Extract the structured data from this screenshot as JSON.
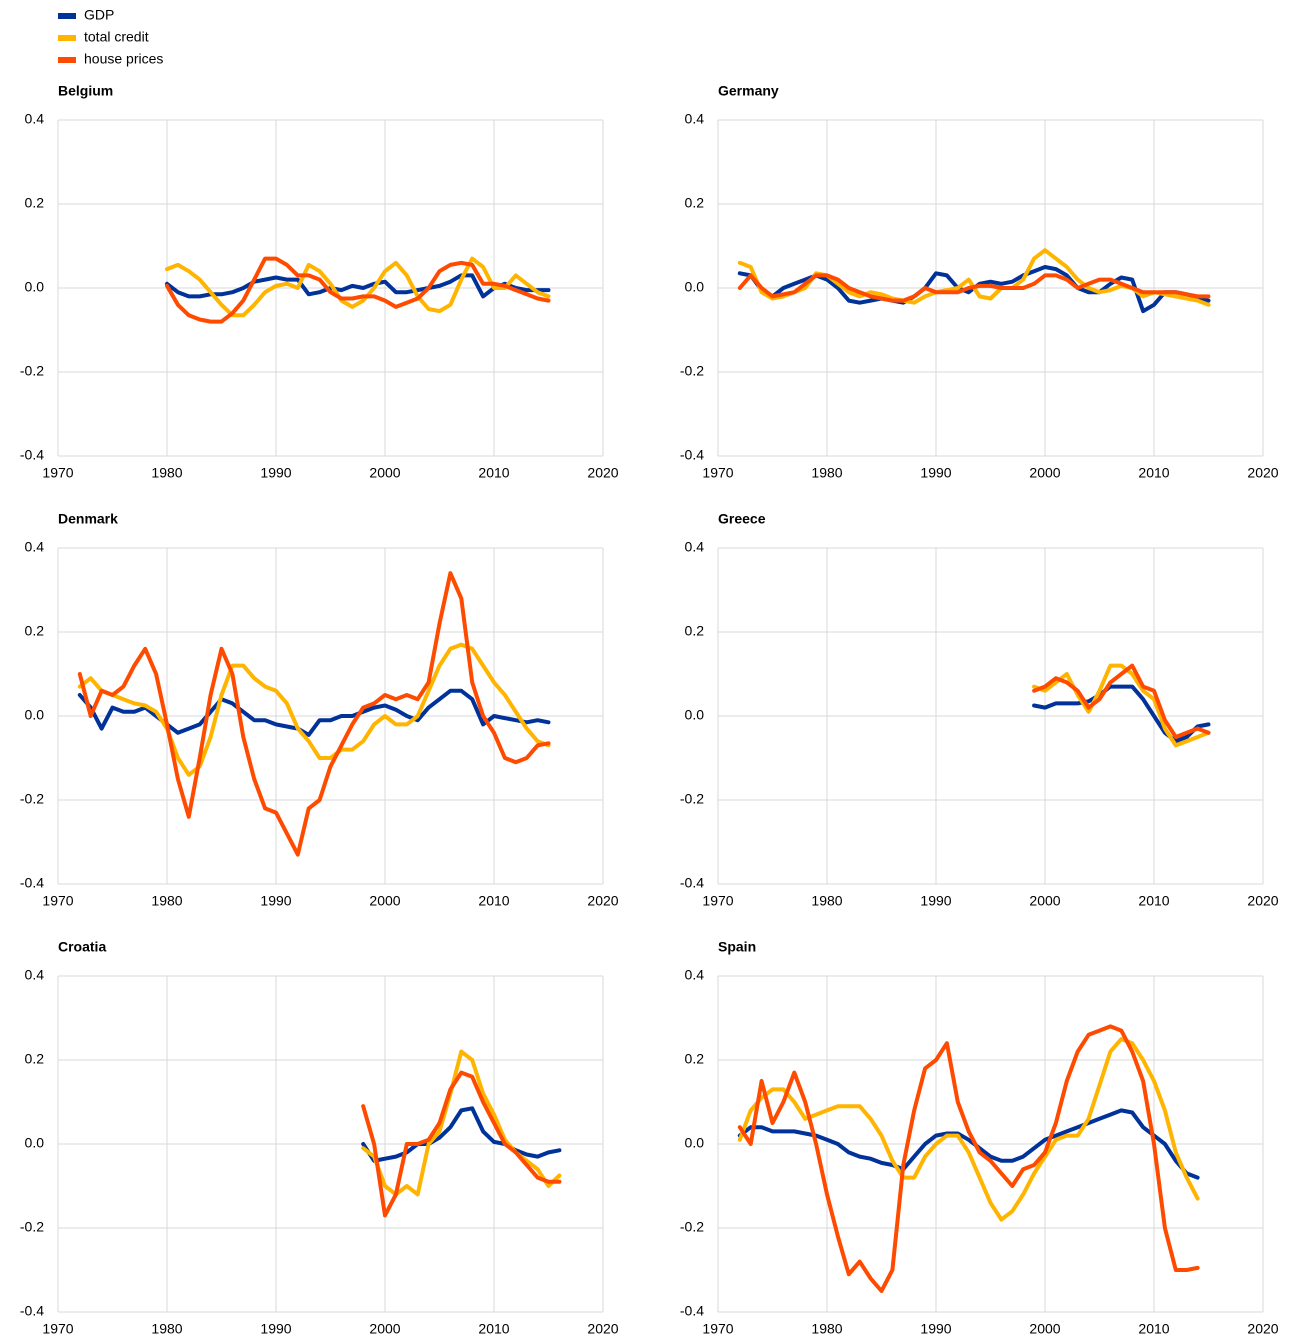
{
  "chart_data": [
    {
      "type": "line",
      "title": "Belgium",
      "xlim": [
        1970,
        2020
      ],
      "xticks": [
        1970,
        1980,
        1990,
        2000,
        2010,
        2020
      ],
      "ylim": [
        -0.4,
        0.4
      ],
      "yticks": [
        -0.4,
        -0.2,
        {
          "value": 0,
          "label": "0.0"
        },
        0.2,
        0.4
      ],
      "grid": true,
      "x": [
        1980,
        1981,
        1982,
        1983,
        1984,
        1985,
        1986,
        1987,
        1988,
        1989,
        1990,
        1991,
        1992,
        1993,
        1994,
        1995,
        1996,
        1997,
        1998,
        1999,
        2000,
        2001,
        2002,
        2003,
        2004,
        2005,
        2006,
        2007,
        2008,
        2009,
        2010,
        2011,
        2012,
        2013,
        2014,
        2015
      ],
      "series": [
        {
          "name": "GDP",
          "color": "#003299",
          "values": [
            0.01,
            -0.01,
            -0.02,
            -0.02,
            -0.015,
            -0.015,
            -0.01,
            0.0,
            0.015,
            0.02,
            0.025,
            0.02,
            0.02,
            -0.015,
            -0.01,
            0.0,
            -0.005,
            0.005,
            0.0,
            0.01,
            0.015,
            -0.01,
            -0.01,
            -0.005,
            0.0,
            0.005,
            0.015,
            0.03,
            0.03,
            -0.02,
            0.0,
            0.01,
            0.0,
            -0.005,
            -0.005,
            -0.005
          ]
        },
        {
          "name": "total credit",
          "color": "#ffb400",
          "values": [
            0.045,
            0.055,
            0.04,
            0.02,
            -0.01,
            -0.04,
            -0.065,
            -0.065,
            -0.04,
            -0.01,
            0.005,
            0.01,
            0.0,
            0.055,
            0.04,
            0.01,
            -0.03,
            -0.045,
            -0.03,
            0.0,
            0.04,
            0.06,
            0.03,
            -0.02,
            -0.05,
            -0.055,
            -0.04,
            0.02,
            0.07,
            0.05,
            0.0,
            0.0,
            0.03,
            0.01,
            -0.01,
            -0.02
          ]
        },
        {
          "name": "house prices",
          "color": "#ff4b00",
          "values": [
            0.005,
            -0.04,
            -0.065,
            -0.075,
            -0.08,
            -0.08,
            -0.06,
            -0.03,
            0.02,
            0.07,
            0.07,
            0.055,
            0.03,
            0.03,
            0.02,
            -0.01,
            -0.025,
            -0.025,
            -0.02,
            -0.02,
            -0.03,
            -0.045,
            -0.035,
            -0.025,
            0.0,
            0.04,
            0.055,
            0.06,
            0.055,
            0.01,
            0.01,
            0.005,
            -0.005,
            -0.015,
            -0.025,
            -0.03
          ]
        }
      ]
    },
    {
      "type": "line",
      "title": "Germany",
      "xlim": [
        1970,
        2020
      ],
      "xticks": [
        1970,
        1980,
        1990,
        2000,
        2010,
        2020
      ],
      "ylim": [
        -0.4,
        0.4
      ],
      "yticks": [
        -0.4,
        -0.2,
        {
          "value": 0,
          "label": "0.0"
        },
        0.2,
        0.4
      ],
      "grid": true,
      "x": [
        1972,
        1973,
        1974,
        1975,
        1976,
        1977,
        1978,
        1979,
        1980,
        1981,
        1982,
        1983,
        1984,
        1985,
        1986,
        1987,
        1988,
        1989,
        1990,
        1991,
        1992,
        1993,
        1994,
        1995,
        1996,
        1997,
        1998,
        1999,
        2000,
        2001,
        2002,
        2003,
        2004,
        2005,
        2006,
        2007,
        2008,
        2009,
        2010,
        2011,
        2012,
        2013,
        2014,
        2015
      ],
      "series": [
        {
          "color": "#003299",
          "values": [
            0.035,
            0.03,
            -0.005,
            -0.02,
            0.0,
            0.01,
            0.02,
            0.03,
            0.02,
            0.0,
            -0.03,
            -0.035,
            -0.03,
            -0.025,
            -0.03,
            -0.035,
            -0.02,
            0.0,
            0.035,
            0.03,
            0.0,
            -0.01,
            0.01,
            0.015,
            0.01,
            0.015,
            0.03,
            0.04,
            0.05,
            0.045,
            0.03,
            0.0,
            -0.01,
            -0.01,
            0.01,
            0.025,
            0.02,
            -0.055,
            -0.04,
            -0.01,
            -0.01,
            -0.015,
            -0.025,
            -0.03
          ]
        },
        {
          "color": "#ffb400",
          "values": [
            0.06,
            0.05,
            -0.01,
            -0.025,
            -0.02,
            -0.01,
            0.0,
            0.035,
            0.03,
            0.01,
            -0.01,
            -0.02,
            -0.01,
            -0.015,
            -0.025,
            -0.03,
            -0.035,
            -0.02,
            -0.01,
            -0.005,
            0.0,
            0.02,
            -0.02,
            -0.025,
            0.0,
            0.0,
            0.02,
            0.07,
            0.09,
            0.07,
            0.05,
            0.02,
            0.0,
            -0.01,
            -0.005,
            0.005,
            0.0,
            -0.02,
            -0.01,
            -0.015,
            -0.02,
            -0.025,
            -0.03,
            -0.04
          ]
        },
        {
          "color": "#ff4b00",
          "values": [
            0.0,
            0.03,
            0.0,
            -0.02,
            -0.015,
            -0.01,
            0.01,
            0.03,
            0.03,
            0.02,
            0.0,
            -0.01,
            -0.02,
            -0.025,
            -0.03,
            -0.03,
            -0.02,
            0.0,
            -0.01,
            -0.01,
            -0.01,
            0.0,
            0.005,
            0.005,
            0.0,
            0.0,
            0.0,
            0.01,
            0.03,
            0.03,
            0.02,
            0.0,
            0.01,
            0.02,
            0.02,
            0.01,
            0.0,
            -0.01,
            -0.01,
            -0.01,
            -0.01,
            -0.015,
            -0.02,
            -0.02
          ]
        }
      ]
    },
    {
      "type": "line",
      "title": "Denmark",
      "xlim": [
        1970,
        2020
      ],
      "xticks": [
        1970,
        1980,
        1990,
        2000,
        2010,
        2020
      ],
      "ylim": [
        -0.4,
        0.4
      ],
      "yticks": [
        -0.4,
        -0.2,
        {
          "value": 0,
          "label": "0.0"
        },
        0.2,
        0.4
      ],
      "grid": true,
      "x": [
        1972,
        1973,
        1974,
        1975,
        1976,
        1977,
        1978,
        1979,
        1980,
        1981,
        1982,
        1983,
        1984,
        1985,
        1986,
        1987,
        1988,
        1989,
        1990,
        1991,
        1992,
        1993,
        1994,
        1995,
        1996,
        1997,
        1998,
        1999,
        2000,
        2001,
        2002,
        2003,
        2004,
        2005,
        2006,
        2007,
        2008,
        2009,
        2010,
        2011,
        2012,
        2013,
        2014,
        2015
      ],
      "series": [
        {
          "color": "#003299",
          "values": [
            0.05,
            0.02,
            -0.03,
            0.02,
            0.01,
            0.01,
            0.02,
            0.0,
            -0.02,
            -0.04,
            -0.03,
            -0.02,
            0.01,
            0.04,
            0.03,
            0.01,
            -0.01,
            -0.01,
            -0.02,
            -0.025,
            -0.03,
            -0.045,
            -0.01,
            -0.01,
            0.0,
            0.0,
            0.01,
            0.02,
            0.025,
            0.015,
            0.0,
            -0.01,
            0.02,
            0.04,
            0.06,
            0.06,
            0.04,
            -0.02,
            0.0,
            -0.005,
            -0.01,
            -0.015,
            -0.01,
            -0.015
          ]
        },
        {
          "color": "#ffb400",
          "values": [
            0.07,
            0.09,
            0.06,
            0.05,
            0.04,
            0.03,
            0.025,
            0.01,
            -0.03,
            -0.1,
            -0.14,
            -0.12,
            -0.05,
            0.05,
            0.12,
            0.12,
            0.09,
            0.07,
            0.06,
            0.03,
            -0.03,
            -0.06,
            -0.1,
            -0.1,
            -0.08,
            -0.08,
            -0.06,
            -0.02,
            0.0,
            -0.02,
            -0.02,
            0.0,
            0.06,
            0.12,
            0.16,
            0.17,
            0.16,
            0.12,
            0.08,
            0.05,
            0.01,
            -0.03,
            -0.06,
            -0.07
          ]
        },
        {
          "color": "#ff4b00",
          "values": [
            0.1,
            0.0,
            0.06,
            0.05,
            0.07,
            0.12,
            0.16,
            0.1,
            -0.02,
            -0.15,
            -0.24,
            -0.1,
            0.05,
            0.16,
            0.1,
            -0.05,
            -0.15,
            -0.22,
            -0.23,
            -0.28,
            -0.33,
            -0.22,
            -0.2,
            -0.12,
            -0.07,
            -0.02,
            0.02,
            0.03,
            0.05,
            0.04,
            0.05,
            0.04,
            0.08,
            0.22,
            0.34,
            0.28,
            0.08,
            0.0,
            -0.04,
            -0.1,
            -0.11,
            -0.1,
            -0.07,
            -0.065
          ]
        }
      ]
    },
    {
      "type": "line",
      "title": "Greece",
      "xlim": [
        1970,
        2020
      ],
      "xticks": [
        1970,
        1980,
        1990,
        2000,
        2010,
        2020
      ],
      "ylim": [
        -0.4,
        0.4
      ],
      "yticks": [
        -0.4,
        -0.2,
        {
          "value": 0,
          "label": "0.0"
        },
        0.2,
        0.4
      ],
      "grid": true,
      "x": [
        1999,
        2000,
        2001,
        2002,
        2003,
        2004,
        2005,
        2006,
        2007,
        2008,
        2009,
        2010,
        2011,
        2012,
        2013,
        2014,
        2015
      ],
      "series": [
        {
          "color": "#003299",
          "values": [
            0.025,
            0.02,
            0.03,
            0.03,
            0.03,
            0.035,
            0.05,
            0.07,
            0.07,
            0.07,
            0.04,
            0.0,
            -0.04,
            -0.06,
            -0.05,
            -0.025,
            -0.02
          ]
        },
        {
          "color": "#ffb400",
          "values": [
            0.07,
            0.06,
            0.08,
            0.1,
            0.05,
            0.01,
            0.06,
            0.12,
            0.12,
            0.1,
            0.06,
            0.04,
            -0.03,
            -0.07,
            -0.06,
            -0.05,
            -0.04
          ]
        },
        {
          "color": "#ff4b00",
          "values": [
            0.06,
            0.07,
            0.09,
            0.08,
            0.06,
            0.02,
            0.04,
            0.08,
            0.1,
            0.12,
            0.07,
            0.06,
            -0.01,
            -0.05,
            -0.04,
            -0.03,
            -0.04
          ]
        }
      ]
    },
    {
      "type": "line",
      "title": "Croatia",
      "xlim": [
        1970,
        2020
      ],
      "xticks": [
        1970,
        1980,
        1990,
        2000,
        2010,
        2020
      ],
      "ylim": [
        -0.4,
        0.4
      ],
      "yticks": [
        -0.4,
        -0.2,
        {
          "value": 0,
          "label": "0.0"
        },
        0.2,
        0.4
      ],
      "grid": true,
      "x": [
        1998,
        1999,
        2000,
        2001,
        2002,
        2003,
        2004,
        2005,
        2006,
        2007,
        2008,
        2009,
        2010,
        2011,
        2012,
        2013,
        2014,
        2015,
        2016
      ],
      "series": [
        {
          "color": "#003299",
          "values": [
            0.0,
            -0.04,
            -0.035,
            -0.03,
            -0.02,
            0.0,
            0.0,
            0.015,
            0.04,
            0.08,
            0.085,
            0.03,
            0.005,
            0.0,
            -0.015,
            -0.025,
            -0.03,
            -0.02,
            -0.015
          ]
        },
        {
          "color": "#ffb400",
          "values": [
            -0.01,
            -0.03,
            -0.1,
            -0.12,
            -0.1,
            -0.12,
            0.0,
            0.03,
            0.12,
            0.22,
            0.2,
            0.12,
            0.07,
            0.01,
            -0.02,
            -0.04,
            -0.06,
            -0.1,
            -0.075
          ]
        },
        {
          "color": "#ff4b00",
          "values": [
            0.09,
            0.0,
            -0.17,
            -0.12,
            0.0,
            0.0,
            0.01,
            0.05,
            0.13,
            0.17,
            0.16,
            0.1,
            0.05,
            0.0,
            -0.02,
            -0.05,
            -0.08,
            -0.09,
            -0.09
          ]
        }
      ]
    },
    {
      "type": "line",
      "title": "Spain",
      "xlim": [
        1970,
        2020
      ],
      "xticks": [
        1970,
        1980,
        1990,
        2000,
        2010,
        2020
      ],
      "ylim": [
        -0.4,
        0.4
      ],
      "yticks": [
        -0.4,
        -0.2,
        {
          "value": 0,
          "label": "0.0"
        },
        0.2,
        0.4
      ],
      "grid": true,
      "x": [
        1972,
        1973,
        1974,
        1975,
        1976,
        1977,
        1978,
        1979,
        1980,
        1981,
        1982,
        1983,
        1984,
        1985,
        1986,
        1987,
        1988,
        1989,
        1990,
        1991,
        1992,
        1993,
        1994,
        1995,
        1996,
        1997,
        1998,
        1999,
        2000,
        2001,
        2002,
        2003,
        2004,
        2005,
        2006,
        2007,
        2008,
        2009,
        2010,
        2011,
        2012,
        2013,
        2014
      ],
      "series": [
        {
          "color": "#003299",
          "values": [
            0.02,
            0.04,
            0.04,
            0.03,
            0.03,
            0.03,
            0.025,
            0.02,
            0.01,
            0.0,
            -0.02,
            -0.03,
            -0.035,
            -0.045,
            -0.05,
            -0.06,
            -0.03,
            0.0,
            0.02,
            0.025,
            0.025,
            0.01,
            -0.01,
            -0.03,
            -0.04,
            -0.04,
            -0.03,
            -0.01,
            0.01,
            0.02,
            0.03,
            0.04,
            0.05,
            0.06,
            0.07,
            0.08,
            0.075,
            0.04,
            0.02,
            0.0,
            -0.04,
            -0.07,
            -0.08
          ]
        },
        {
          "color": "#ffb400",
          "values": [
            0.01,
            0.08,
            0.11,
            0.13,
            0.13,
            0.1,
            0.06,
            0.07,
            0.08,
            0.09,
            0.09,
            0.09,
            0.06,
            0.02,
            -0.04,
            -0.08,
            -0.08,
            -0.03,
            0.0,
            0.02,
            0.02,
            -0.02,
            -0.08,
            -0.14,
            -0.18,
            -0.16,
            -0.12,
            -0.07,
            -0.03,
            0.01,
            0.02,
            0.02,
            0.06,
            0.14,
            0.22,
            0.25,
            0.24,
            0.2,
            0.15,
            0.08,
            -0.02,
            -0.08,
            -0.13
          ]
        },
        {
          "color": "#ff4b00",
          "values": [
            0.04,
            0.0,
            0.15,
            0.05,
            0.1,
            0.17,
            0.1,
            0.0,
            -0.12,
            -0.22,
            -0.31,
            -0.28,
            -0.32,
            -0.35,
            -0.3,
            -0.05,
            0.08,
            0.18,
            0.2,
            0.24,
            0.1,
            0.03,
            -0.02,
            -0.04,
            -0.07,
            -0.1,
            -0.06,
            -0.05,
            -0.02,
            0.05,
            0.15,
            0.22,
            0.26,
            0.27,
            0.28,
            0.27,
            0.22,
            0.15,
            0.0,
            -0.2,
            -0.3,
            -0.3,
            -0.295
          ]
        }
      ]
    }
  ]
}
